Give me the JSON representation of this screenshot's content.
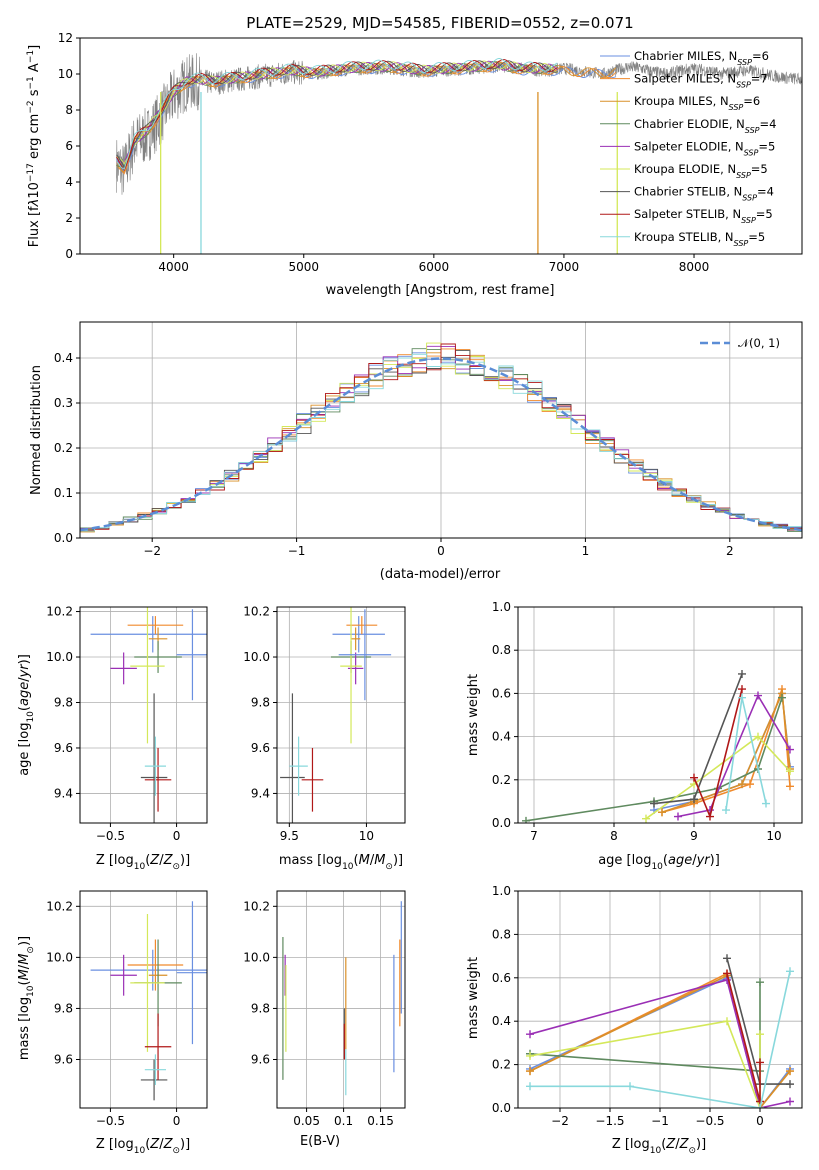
{
  "figure_title": "PLATE=2529, MJD=54585, FIBERID=0552, z=0.071",
  "models": [
    {
      "name": "Chabrier MILES",
      "nssp": "6",
      "color": "#6a8fe0"
    },
    {
      "name": "Salpeter MILES",
      "nssp": "7",
      "color": "#f08a2c"
    },
    {
      "name": "Kroupa MILES",
      "nssp": "6",
      "color": "#d9902a"
    },
    {
      "name": "Chabrier ELODIE",
      "nssp": "4",
      "color": "#5f8a5f"
    },
    {
      "name": "Salpeter ELODIE",
      "nssp": "5",
      "color": "#9a2fb5"
    },
    {
      "name": "Kroupa ELODIE",
      "nssp": "5",
      "color": "#d4e85a"
    },
    {
      "name": "Chabrier STELIB",
      "nssp": "4",
      "color": "#555555"
    },
    {
      "name": "Salpeter STELIB",
      "nssp": "5",
      "color": "#b01818"
    },
    {
      "name": "Kroupa STELIB",
      "nssp": "5",
      "color": "#88d8dc"
    }
  ],
  "chart_data": [
    {
      "type": "line",
      "id": "spectrum",
      "xlabel": "wavelength [Angstrom, rest frame]",
      "ylabel": "Flux [f",
      "xlim": [
        3280,
        8830
      ],
      "ylim": [
        0,
        12
      ],
      "xticks": [
        4000,
        5000,
        6000,
        7000,
        8000
      ],
      "yticks": [
        0,
        2,
        4,
        6,
        8,
        10,
        12
      ],
      "legend": "right",
      "observed_color": "#808080",
      "observed": {
        "x": [
          3560,
          3620,
          3700,
          3800,
          3900,
          4000,
          4100,
          4200,
          4300,
          4500,
          4700,
          4900,
          5100,
          5300,
          5500,
          5700,
          5900,
          6100,
          6300,
          6500,
          6700,
          6800,
          6900,
          7000,
          7100,
          7200,
          7300,
          7400,
          7500,
          7600,
          7700,
          7800,
          7900,
          8000,
          8100,
          8200,
          8300,
          8400,
          8500,
          8600,
          8700,
          8830
        ],
        "y": [
          5.0,
          4.6,
          6.2,
          6.6,
          7.6,
          8.8,
          9.5,
          9.6,
          9.5,
          9.7,
          9.9,
          10.1,
          10.0,
          10.2,
          10.3,
          10.3,
          10.1,
          10.2,
          10.3,
          10.4,
          10.3,
          10.2,
          10.2,
          10.3,
          10.2,
          10.1,
          10.0,
          10.2,
          10.4,
          10.3,
          10.1,
          10.0,
          10.2,
          10.3,
          10.2,
          10.0,
          10.1,
          10.2,
          10.1,
          9.9,
          9.8,
          9.7
        ]
      },
      "model_fit": {
        "x": [
          3560,
          3620,
          3700,
          3800,
          3900,
          4000,
          4100,
          4200,
          4300,
          4500,
          4700,
          4900,
          5100,
          5300,
          5500,
          5700,
          5900,
          6100,
          6300,
          6500,
          6700,
          6900,
          7100,
          7300,
          7400
        ],
        "y": [
          5.2,
          4.8,
          6.3,
          6.9,
          7.9,
          9.0,
          9.6,
          9.7,
          9.6,
          9.8,
          10.0,
          10.2,
          10.1,
          10.3,
          10.4,
          10.4,
          10.2,
          10.3,
          10.4,
          10.5,
          10.3,
          10.3,
          10.2,
          10.1,
          10.2
        ]
      }
    },
    {
      "type": "line",
      "id": "residuals",
      "xlabel": "(data-model)/error",
      "ylabel": "Normed distribution",
      "xlim": [
        -2.5,
        2.5
      ],
      "ylim": [
        0,
        0.48
      ],
      "xticks": [
        -2,
        -1,
        0,
        1,
        2
      ],
      "yticks": [
        0.0,
        0.1,
        0.2,
        0.3,
        0.4
      ],
      "series": [
        {
          "name": "𝒩(0, 1)",
          "mu": 0,
          "sigma": 1,
          "color": "#5b8dd6",
          "style": "dashed"
        }
      ],
      "bin_width": 0.1,
      "legend": "top-right"
    },
    {
      "type": "scatter",
      "id": "age_vs_Z",
      "xlabel": "Z [log",
      "ylabel": "age  [log",
      "xlim": [
        -0.73,
        0.23
      ],
      "ylim": [
        9.27,
        10.22
      ],
      "xticks": [
        -0.5,
        0.0
      ],
      "yticks": [
        9.4,
        9.6,
        9.8,
        10.0,
        10.2
      ],
      "points": [
        {
          "x": -0.18,
          "xerr": 0.47,
          "y": 10.1,
          "yerr": 0.08
        },
        {
          "x": -0.16,
          "xerr": 0.21,
          "y": 10.14,
          "yerr": 0.04
        },
        {
          "x": -0.14,
          "xerr": 0.07,
          "y": 10.08,
          "yerr": 0.05
        },
        {
          "x": -0.14,
          "xerr": 0.18,
          "y": 10.0,
          "yerr": 0.07
        },
        {
          "x": -0.4,
          "xerr": 0.1,
          "y": 9.95,
          "yerr": 0.07
        },
        {
          "x": -0.22,
          "xerr": 0.13,
          "y": 9.96,
          "yerr": 0.34
        },
        {
          "x": -0.17,
          "xerr": 0.1,
          "y": 9.47,
          "yerr": 0.37
        },
        {
          "x": -0.14,
          "xerr": 0.1,
          "y": 9.46,
          "yerr": 0.14
        },
        {
          "x": -0.16,
          "xerr": 0.08,
          "y": 9.52,
          "yerr": 0.13
        },
        {
          "x": 0.12,
          "xerr": 0.12,
          "y": 10.01,
          "yerr": 0.2
        }
      ]
    },
    {
      "type": "scatter",
      "id": "age_vs_mass",
      "xlabel": "mass [log",
      "xlim": [
        9.42,
        10.25
      ],
      "ylim": [
        9.27,
        10.22
      ],
      "xticks": [
        9.5,
        10.0
      ],
      "yticks": [
        9.4,
        9.6,
        9.8,
        10.0,
        10.2
      ],
      "points": [
        {
          "x": 9.95,
          "xerr": 0.17,
          "y": 10.1,
          "yerr": 0.08
        },
        {
          "x": 9.97,
          "xerr": 0.1,
          "y": 10.14,
          "yerr": 0.04
        },
        {
          "x": 9.93,
          "xerr": 0.03,
          "y": 10.08,
          "yerr": 0.05
        },
        {
          "x": 9.9,
          "xerr": 0.13,
          "y": 10.0,
          "yerr": 0.07
        },
        {
          "x": 9.93,
          "xerr": 0.05,
          "y": 9.95,
          "yerr": 0.07
        },
        {
          "x": 9.9,
          "xerr": 0.07,
          "y": 9.96,
          "yerr": 0.34
        },
        {
          "x": 9.52,
          "xerr": 0.08,
          "y": 9.47,
          "yerr": 0.37
        },
        {
          "x": 9.65,
          "xerr": 0.07,
          "y": 9.46,
          "yerr": 0.14
        },
        {
          "x": 9.56,
          "xerr": 0.06,
          "y": 9.52,
          "yerr": 0.13
        },
        {
          "x": 9.99,
          "xerr": 0.17,
          "y": 10.01,
          "yerr": 0.2
        }
      ]
    },
    {
      "type": "line",
      "id": "weight_vs_age",
      "xlabel": "age  [log",
      "ylabel": "mass weight",
      "xlim": [
        6.8,
        10.35
      ],
      "ylim": [
        0,
        1.0
      ],
      "xticks": [
        7,
        8,
        9,
        10
      ],
      "yticks": [
        0.0,
        0.2,
        0.4,
        0.6,
        0.8,
        1.0
      ],
      "series": [
        {
          "name": "Chabrier MILES",
          "x": [
            8.5,
            9.0,
            9.6,
            10.1,
            10.2
          ],
          "y": [
            0.06,
            0.1,
            0.18,
            0.6,
            0.26
          ]
        },
        {
          "name": "Salpeter MILES",
          "x": [
            8.6,
            9.0,
            9.7,
            10.1,
            10.2
          ],
          "y": [
            0.05,
            0.09,
            0.18,
            0.62,
            0.17
          ]
        },
        {
          "name": "Kroupa MILES",
          "x": [
            8.6,
            9.0,
            9.6,
            10.1,
            10.2
          ],
          "y": [
            0.05,
            0.1,
            0.18,
            0.6,
            0.25
          ]
        },
        {
          "name": "Chabrier ELODIE",
          "x": [
            6.9,
            8.5,
            9.3,
            9.8,
            10.1
          ],
          "y": [
            0.01,
            0.1,
            0.16,
            0.25,
            0.58
          ]
        },
        {
          "name": "Salpeter ELODIE",
          "x": [
            8.8,
            9.2,
            9.8,
            10.2
          ],
          "y": [
            0.03,
            0.06,
            0.59,
            0.34
          ]
        },
        {
          "name": "Kroupa ELODIE",
          "x": [
            8.4,
            9.0,
            9.8,
            10.2
          ],
          "y": [
            0.02,
            0.18,
            0.4,
            0.24
          ]
        },
        {
          "name": "Chabrier STELIB",
          "x": [
            8.5,
            9.0,
            9.6
          ],
          "y": [
            0.09,
            0.11,
            0.69
          ]
        },
        {
          "name": "Salpeter STELIB",
          "x": [
            9.0,
            9.2,
            9.6
          ],
          "y": [
            0.21,
            0.03,
            0.62
          ]
        },
        {
          "name": "Kroupa STELIB",
          "x": [
            9.4,
            9.6,
            9.9
          ],
          "y": [
            0.06,
            0.58,
            0.09
          ]
        }
      ]
    },
    {
      "type": "scatter",
      "id": "mass_vs_Z",
      "xlabel": "Z [log",
      "ylabel": "mass [log",
      "xlim": [
        -0.73,
        0.23
      ],
      "ylim": [
        9.41,
        10.26
      ],
      "xticks": [
        -0.5,
        0.0
      ],
      "yticks": [
        9.6,
        9.8,
        10.0,
        10.2
      ],
      "points": [
        {
          "x": -0.18,
          "xerr": 0.47,
          "y": 9.95,
          "yerr": 0.08
        },
        {
          "x": -0.16,
          "xerr": 0.21,
          "y": 9.97,
          "yerr": 0.1
        },
        {
          "x": -0.14,
          "xerr": 0.07,
          "y": 9.93,
          "yerr": 0.03
        },
        {
          "x": -0.14,
          "xerr": 0.18,
          "y": 9.9,
          "yerr": 0.17
        },
        {
          "x": -0.4,
          "xerr": 0.1,
          "y": 9.93,
          "yerr": 0.08
        },
        {
          "x": -0.22,
          "xerr": 0.13,
          "y": 9.9,
          "yerr": 0.27
        },
        {
          "x": -0.17,
          "xerr": 0.1,
          "y": 9.52,
          "yerr": 0.08
        },
        {
          "x": -0.14,
          "xerr": 0.1,
          "y": 9.65,
          "yerr": 0.13
        },
        {
          "x": -0.16,
          "xerr": 0.08,
          "y": 9.56,
          "yerr": 0.06
        },
        {
          "x": 0.12,
          "xerr": 0.12,
          "y": 9.94,
          "yerr": 0.28
        }
      ]
    },
    {
      "type": "scatter",
      "id": "mass_vs_EBV",
      "xlabel": "E(B-V)",
      "xlim": [
        0.01,
        0.183
      ],
      "ylim": [
        9.41,
        10.26
      ],
      "xticks": [
        0.05,
        0.1,
        0.15
      ],
      "yticks": [
        9.6,
        9.8,
        10.0,
        10.2
      ],
      "points": [
        {
          "x": 0.168,
          "y": 9.78,
          "yerr": 0.23
        },
        {
          "x": 0.176,
          "y": 9.9,
          "yerr": 0.17
        },
        {
          "x": 0.103,
          "y": 9.82,
          "yerr": 0.18
        },
        {
          "x": 0.018,
          "y": 9.8,
          "yerr": 0.28
        },
        {
          "x": 0.021,
          "y": 9.93,
          "yerr": 0.08
        },
        {
          "x": 0.022,
          "y": 9.8,
          "yerr": 0.17
        },
        {
          "x": 0.101,
          "y": 9.7,
          "yerr": 0.1
        },
        {
          "x": 0.101,
          "y": 9.67,
          "yerr": 0.07
        },
        {
          "x": 0.103,
          "y": 9.55,
          "yerr": 0.09
        },
        {
          "x": 0.178,
          "y": 10.0,
          "yerr": 0.22
        }
      ]
    },
    {
      "type": "line",
      "id": "weight_vs_Z",
      "xlabel": "Z [log",
      "ylabel": "mass weight",
      "xlim": [
        -2.42,
        0.42
      ],
      "ylim": [
        0,
        1.0
      ],
      "xticks": [
        -2.0,
        -1.5,
        -1.0,
        -0.5,
        0.0
      ],
      "yticks": [
        0.0,
        0.2,
        0.4,
        0.6,
        0.8,
        1.0
      ],
      "series": [
        {
          "name": "Chabrier MILES",
          "x": [
            -2.3,
            -0.33,
            0.0,
            0.3
          ],
          "y": [
            0.18,
            0.6,
            0.0,
            0.18
          ]
        },
        {
          "name": "Salpeter MILES",
          "x": [
            -2.3,
            -0.33,
            0.0,
            0.3
          ],
          "y": [
            0.17,
            0.62,
            0.0,
            0.17
          ]
        },
        {
          "name": "Kroupa MILES",
          "x": [
            -2.3,
            -0.33,
            0.0,
            0.3
          ],
          "y": [
            0.17,
            0.61,
            0.0,
            0.17
          ]
        },
        {
          "name": "Chabrier ELODIE",
          "x": [
            -2.3,
            0.0,
            0.0
          ],
          "y": [
            0.25,
            0.17,
            0.58
          ]
        },
        {
          "name": "Salpeter ELODIE",
          "x": [
            -2.3,
            -0.33,
            0.0,
            0.3
          ],
          "y": [
            0.34,
            0.59,
            0.0,
            0.03
          ]
        },
        {
          "name": "Kroupa ELODIE",
          "x": [
            -2.3,
            -0.33,
            0.0,
            0.0
          ],
          "y": [
            0.24,
            0.4,
            0.0,
            0.34
          ]
        },
        {
          "name": "Chabrier STELIB",
          "x": [
            -0.33,
            0.0,
            0.3
          ],
          "y": [
            0.69,
            0.11,
            0.11
          ]
        },
        {
          "name": "Salpeter STELIB",
          "x": [
            -0.33,
            0.0,
            0.0
          ],
          "y": [
            0.62,
            0.03,
            0.21
          ]
        },
        {
          "name": "Kroupa STELIB",
          "x": [
            -2.3,
            -1.3,
            0.0,
            0.3
          ],
          "y": [
            0.1,
            0.1,
            0.0,
            0.63
          ]
        }
      ]
    }
  ]
}
